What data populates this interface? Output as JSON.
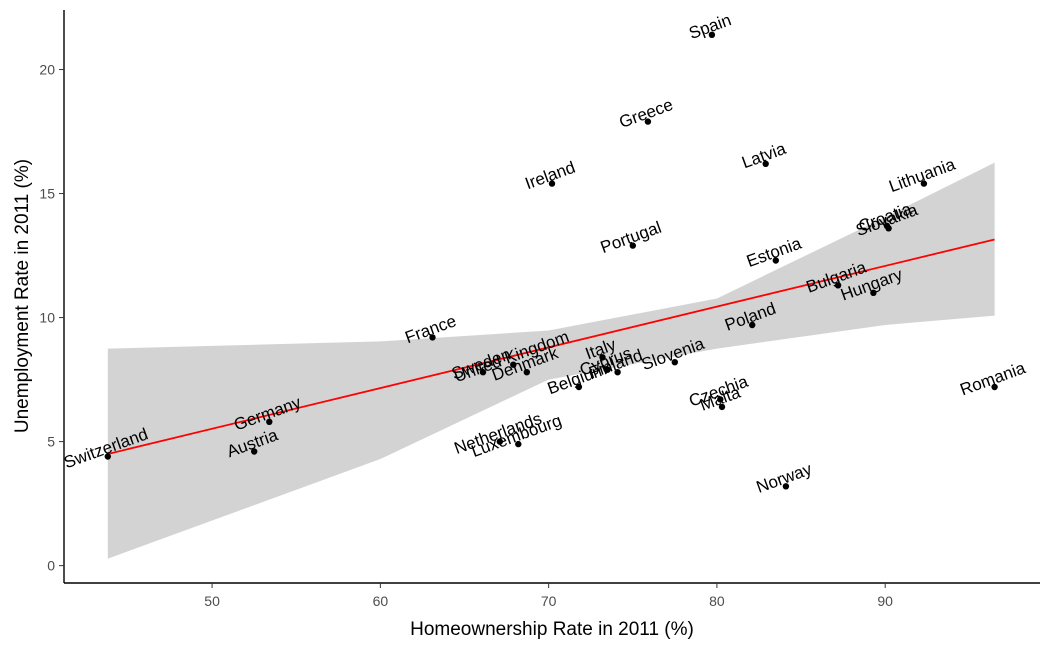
{
  "chart_data": {
    "type": "scatter",
    "title": "",
    "xlabel": "Homeownership Rate in 2011 (%)",
    "ylabel": "Unemployment Rate in 2011 (%)",
    "xlim": [
      41.2,
      99.2
    ],
    "ylim": [
      -0.7,
      22.4
    ],
    "xticks": [
      50,
      60,
      70,
      80,
      90
    ],
    "yticks": [
      0,
      5,
      10,
      15,
      20
    ],
    "grid": false,
    "points_color": "#000000",
    "regression": {
      "method": "lm",
      "color": "#ff0000",
      "band_color": "#d3d3d3",
      "line": [
        [
          43.8,
          4.5
        ],
        [
          96.5,
          13.15
        ]
      ],
      "band_upper": [
        [
          43.8,
          8.75
        ],
        [
          60,
          9.04
        ],
        [
          70,
          9.48
        ],
        [
          80,
          10.77
        ],
        [
          90,
          14.05
        ],
        [
          96.5,
          16.25
        ]
      ],
      "band_lower": [
        [
          43.8,
          0.28
        ],
        [
          60,
          4.3
        ],
        [
          70,
          7.5
        ],
        [
          80,
          8.75
        ],
        [
          90,
          9.7
        ],
        [
          96.5,
          10.08
        ]
      ]
    },
    "points": [
      {
        "label": "Spain",
        "x": 79.7,
        "y": 21.4
      },
      {
        "label": "Greece",
        "x": 75.9,
        "y": 17.9
      },
      {
        "label": "Latvia",
        "x": 82.9,
        "y": 16.2
      },
      {
        "label": "Ireland",
        "x": 70.2,
        "y": 15.4
      },
      {
        "label": "Lithuania",
        "x": 92.3,
        "y": 15.4
      },
      {
        "label": "Croatia",
        "x": 90.1,
        "y": 13.7
      },
      {
        "label": "Slovakia",
        "x": 90.2,
        "y": 13.6
      },
      {
        "label": "Portugal",
        "x": 75.0,
        "y": 12.9
      },
      {
        "label": "Estonia",
        "x": 83.5,
        "y": 12.3
      },
      {
        "label": "Bulgaria",
        "x": 87.2,
        "y": 11.3
      },
      {
        "label": "Hungary",
        "x": 89.3,
        "y": 11.0
      },
      {
        "label": "Poland",
        "x": 82.1,
        "y": 9.7
      },
      {
        "label": "France",
        "x": 63.1,
        "y": 9.2
      },
      {
        "label": "Italy",
        "x": 73.2,
        "y": 8.4
      },
      {
        "label": "Slovenia",
        "x": 77.5,
        "y": 8.2
      },
      {
        "label": "United Kingdom",
        "x": 67.9,
        "y": 8.1
      },
      {
        "label": "Cyprus",
        "x": 73.5,
        "y": 7.9
      },
      {
        "label": "Sweden",
        "x": 66.1,
        "y": 7.8
      },
      {
        "label": "Finland",
        "x": 74.1,
        "y": 7.8
      },
      {
        "label": "Denmark",
        "x": 68.7,
        "y": 7.8
      },
      {
        "label": "Belgium",
        "x": 71.8,
        "y": 7.2
      },
      {
        "label": "Romania",
        "x": 96.5,
        "y": 7.2
      },
      {
        "label": "Czechia",
        "x": 80.2,
        "y": 6.7
      },
      {
        "label": "Malta",
        "x": 80.3,
        "y": 6.4
      },
      {
        "label": "Germany",
        "x": 53.4,
        "y": 5.8
      },
      {
        "label": "Netherlands",
        "x": 67.1,
        "y": 5.0
      },
      {
        "label": "Luxembourg",
        "x": 68.2,
        "y": 4.9
      },
      {
        "label": "Austria",
        "x": 52.5,
        "y": 4.6
      },
      {
        "label": "Switzerland",
        "x": 43.8,
        "y": 4.4
      },
      {
        "label": "Norway",
        "x": 84.1,
        "y": 3.2
      }
    ]
  }
}
